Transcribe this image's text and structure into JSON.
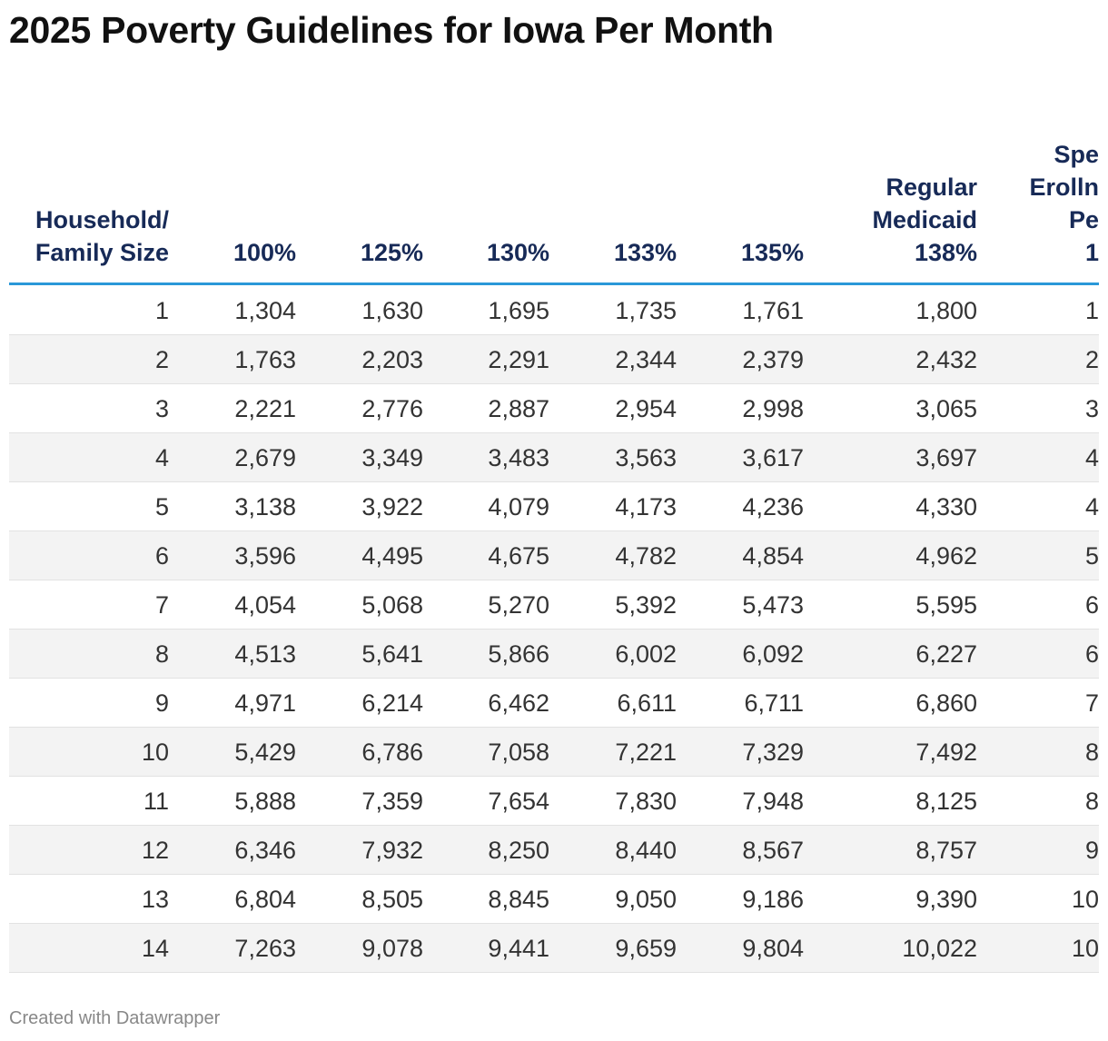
{
  "header": {
    "title": "2025 Poverty Guidelines for Iowa Per Month"
  },
  "table": {
    "columns": [
      "Household/\nFamily Size",
      "100%",
      "125%",
      "130%",
      "133%",
      "135%",
      "Regular\nMedicaid\n138%",
      "Spe\nErolln\nPe\n1"
    ],
    "rows": [
      [
        "1",
        "1,304",
        "1,630",
        "1,695",
        "1,735",
        "1,761",
        "1,800",
        "1"
      ],
      [
        "2",
        "1,763",
        "2,203",
        "2,291",
        "2,344",
        "2,379",
        "2,432",
        "2"
      ],
      [
        "3",
        "2,221",
        "2,776",
        "2,887",
        "2,954",
        "2,998",
        "3,065",
        "3"
      ],
      [
        "4",
        "2,679",
        "3,349",
        "3,483",
        "3,563",
        "3,617",
        "3,697",
        "4"
      ],
      [
        "5",
        "3,138",
        "3,922",
        "4,079",
        "4,173",
        "4,236",
        "4,330",
        "4"
      ],
      [
        "6",
        "3,596",
        "4,495",
        "4,675",
        "4,782",
        "4,854",
        "4,962",
        "5"
      ],
      [
        "7",
        "4,054",
        "5,068",
        "5,270",
        "5,392",
        "5,473",
        "5,595",
        "6"
      ],
      [
        "8",
        "4,513",
        "5,641",
        "5,866",
        "6,002",
        "6,092",
        "6,227",
        "6"
      ],
      [
        "9",
        "4,971",
        "6,214",
        "6,462",
        "6,611",
        "6,711",
        "6,860",
        "7"
      ],
      [
        "10",
        "5,429",
        "6,786",
        "7,058",
        "7,221",
        "7,329",
        "7,492",
        "8"
      ],
      [
        "11",
        "5,888",
        "7,359",
        "7,654",
        "7,830",
        "7,948",
        "8,125",
        "8"
      ],
      [
        "12",
        "6,346",
        "7,932",
        "8,250",
        "8,440",
        "8,567",
        "8,757",
        "9"
      ],
      [
        "13",
        "6,804",
        "8,505",
        "8,845",
        "9,050",
        "9,186",
        "9,390",
        "10"
      ],
      [
        "14",
        "7,263",
        "9,078",
        "9,441",
        "9,659",
        "9,804",
        "10,022",
        "10"
      ]
    ]
  },
  "footer": {
    "credit": "Created with Datawrapper"
  }
}
